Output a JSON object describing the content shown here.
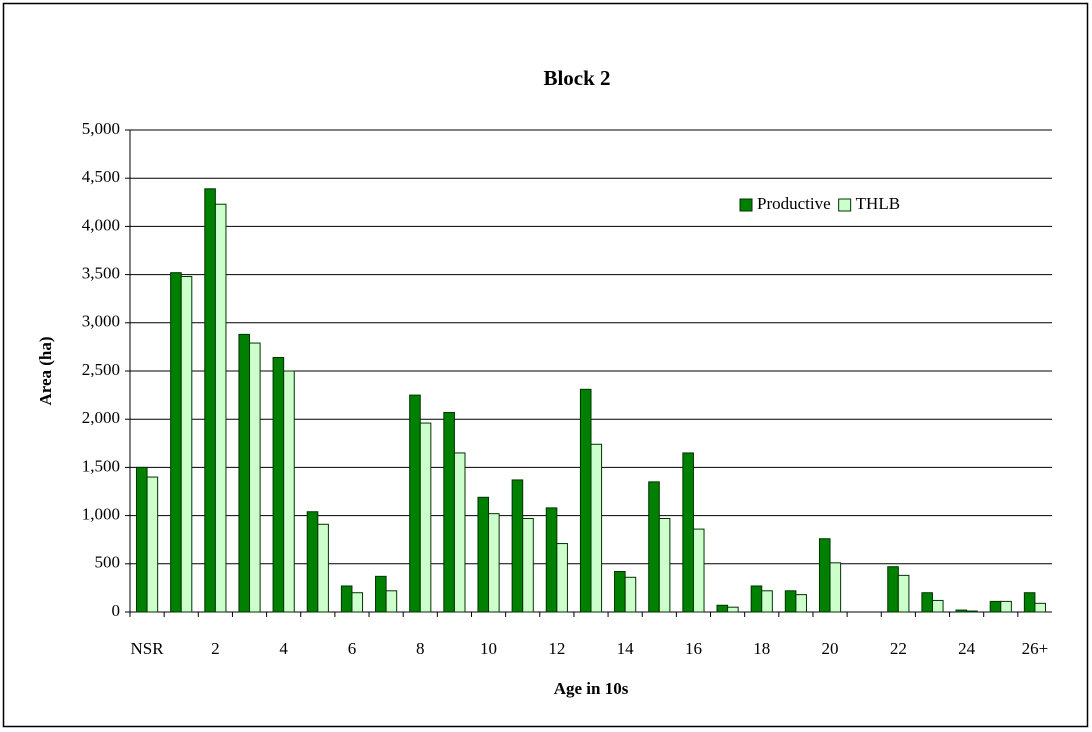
{
  "chart_data": {
    "type": "bar",
    "title": "Block 2",
    "x_label": "Age in 10s",
    "y_label": "Area (ha)",
    "categories": [
      "NSR",
      null,
      "2",
      null,
      "4",
      null,
      "6",
      null,
      "8",
      null,
      "10",
      null,
      "12",
      null,
      "14",
      null,
      "16",
      null,
      "18",
      null,
      "20",
      null,
      "22",
      null,
      "24",
      null,
      "26+"
    ],
    "series": [
      {
        "name": "Productive",
        "color": "#008000",
        "values": [
          1500,
          3520,
          4390,
          2880,
          2640,
          1040,
          270,
          370,
          2250,
          2070,
          1190,
          1370,
          1080,
          2310,
          420,
          1350,
          1650,
          70,
          270,
          220,
          760,
          0,
          470,
          200,
          20,
          110,
          200
        ]
      },
      {
        "name": "THLB",
        "color": "#ccffcc",
        "values": [
          1400,
          3480,
          4230,
          2790,
          2500,
          910,
          200,
          220,
          1960,
          1650,
          1020,
          970,
          710,
          1740,
          360,
          970,
          860,
          50,
          220,
          180,
          510,
          0,
          380,
          120,
          10,
          110,
          90
        ]
      }
    ],
    "ylim": [
      0,
      5000
    ],
    "yticks": [
      0,
      500,
      {
        "value": 1000,
        "label": "1,000"
      },
      {
        "value": 1500,
        "label": "1,500"
      },
      {
        "value": 2000,
        "label": "2,000"
      },
      {
        "value": 2500,
        "label": "2,500"
      },
      {
        "value": 3000,
        "label": "3,000"
      },
      {
        "value": 3500,
        "label": "3,500"
      },
      {
        "value": 4000,
        "label": "4,000"
      },
      {
        "value": 4500,
        "label": "4,500"
      },
      {
        "value": 5000,
        "label": "5,000"
      }
    ],
    "grid": true,
    "legend": "upper-right"
  }
}
